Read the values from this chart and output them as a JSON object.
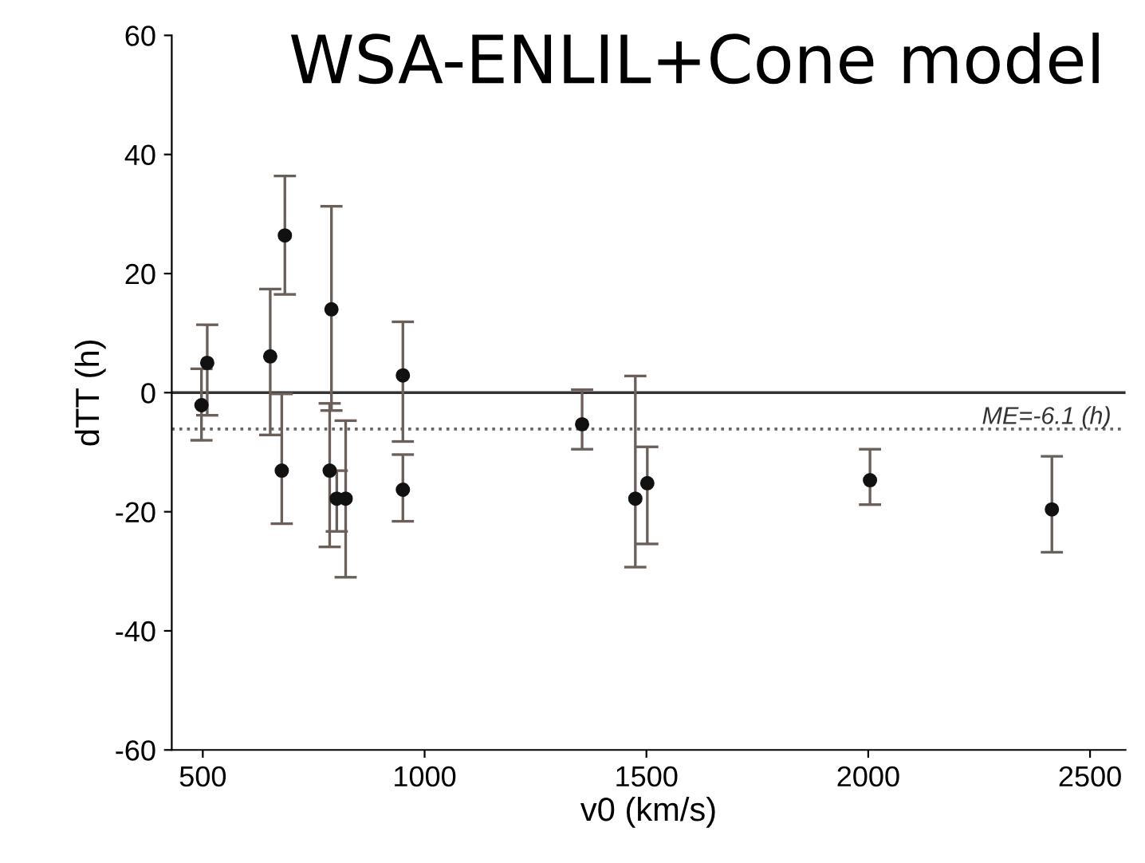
{
  "chart_data": {
    "type": "scatter",
    "title": "WSA-ENLIL+Cone model",
    "xlabel": "v0 (km/s)",
    "ylabel": "dTT (h)",
    "x": [
      497,
      510,
      652,
      685,
      678,
      790,
      786,
      802,
      822,
      951,
      951,
      1355,
      1475,
      1502,
      2004,
      2414
    ],
    "values": [
      -2.1,
      5.0,
      6.1,
      26.4,
      -13.1,
      14.0,
      -13.1,
      -17.8,
      -17.8,
      2.9,
      -16.3,
      -5.3,
      -17.8,
      -15.2,
      -14.7,
      -19.6
    ],
    "errors": [
      [
        -8.0,
        4.0
      ],
      [
        -3.8,
        11.4
      ],
      [
        -7.1,
        17.4
      ],
      [
        16.5,
        36.4
      ],
      [
        -22.0,
        -0.2
      ],
      [
        -3.0,
        31.3
      ],
      [
        -25.9,
        -1.8
      ],
      [
        -23.3,
        -13.1
      ],
      [
        -31.0,
        -4.7
      ],
      [
        -8.2,
        11.9
      ],
      [
        -21.6,
        -10.4
      ],
      [
        -9.5,
        0.5
      ],
      [
        -29.3,
        2.8
      ],
      [
        -25.4,
        -9.1
      ],
      [
        -18.8,
        -9.5
      ],
      [
        -26.8,
        -10.7
      ]
    ],
    "color": "#111111",
    "marker": "circle",
    "xlim": [
      430,
      2580
    ],
    "xticks": [
      500,
      1000,
      1500,
      2000,
      2500
    ],
    "ylim": [
      -60,
      60
    ],
    "yticks": [
      -60,
      -40,
      -20,
      0,
      20,
      40,
      60
    ],
    "ref_lines": [
      {
        "axis": "y",
        "value": 0,
        "label": null,
        "color": "#333333",
        "line_style": "solid"
      },
      {
        "axis": "y",
        "value": -6.1,
        "label": "ME=-6.1 (h)",
        "color": "#666666",
        "line_style": "dotted"
      }
    ],
    "grid": false,
    "legend": false
  }
}
